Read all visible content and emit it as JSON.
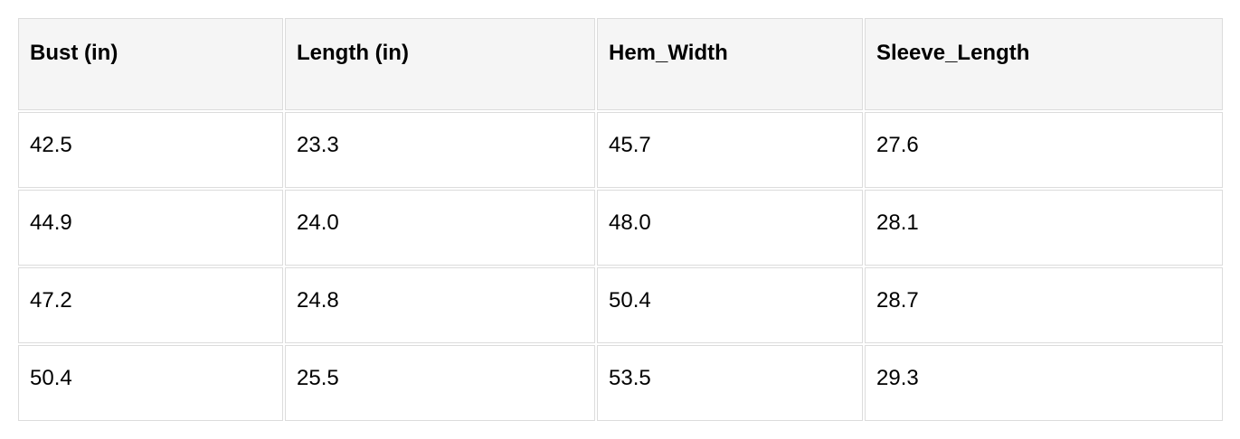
{
  "table": {
    "headers": [
      "Bust (in)",
      "Length (in)",
      "Hem_Width",
      "Sleeve_Length"
    ],
    "rows": [
      [
        "42.5",
        "23.3",
        "45.7",
        "27.6"
      ],
      [
        "44.9",
        "24.0",
        "48.0",
        "28.1"
      ],
      [
        "47.2",
        "24.8",
        "50.4",
        "28.7"
      ],
      [
        "50.4",
        "25.5",
        "53.5",
        "29.3"
      ]
    ]
  }
}
